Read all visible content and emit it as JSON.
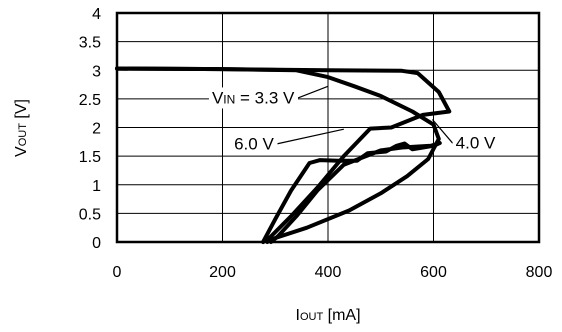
{
  "chart_data": {
    "type": "line",
    "xlabel": "I",
    "xlabel_sub": "OUT",
    "xlabel_unit": " [mA]",
    "ylabel": "V",
    "ylabel_sub": "OUT",
    "ylabel_unit": " [V]",
    "xlim": [
      0,
      800
    ],
    "ylim": [
      0,
      4
    ],
    "x_ticks": [
      0,
      200,
      400,
      600,
      800
    ],
    "y_ticks": [
      0,
      0.5,
      1,
      1.5,
      2,
      2.5,
      3,
      3.5,
      4
    ],
    "x_tick_labels": [
      "0",
      "200",
      "400",
      "600",
      "800"
    ],
    "y_tick_labels": [
      "0",
      "0.5",
      "1",
      "1.5",
      "2",
      "2.5",
      "3",
      "3.5",
      "4"
    ],
    "grid": true,
    "series": [
      {
        "label": "V",
        "label_sub": "IN",
        "label_rest": " = 3.3 V",
        "points": [
          [
            0,
            3.03
          ],
          [
            200,
            3.02
          ],
          [
            340,
            3.0
          ],
          [
            400,
            2.88
          ],
          [
            450,
            2.72
          ],
          [
            500,
            2.55
          ],
          [
            560,
            2.28
          ],
          [
            600,
            2.05
          ],
          [
            610,
            1.8
          ],
          [
            590,
            1.45
          ],
          [
            550,
            1.15
          ],
          [
            500,
            0.85
          ],
          [
            440,
            0.55
          ],
          [
            360,
            0.25
          ],
          [
            300,
            0.07
          ],
          [
            285,
            0
          ]
        ]
      },
      {
        "label": "4.0 V",
        "points": [
          [
            0,
            3.03
          ],
          [
            200,
            3.02
          ],
          [
            400,
            3.0
          ],
          [
            540,
            2.99
          ],
          [
            570,
            2.95
          ],
          [
            610,
            2.62
          ],
          [
            630,
            2.28
          ],
          [
            580,
            2.22
          ],
          [
            520,
            2.0
          ],
          [
            480,
            1.98
          ],
          [
            430,
            1.5
          ],
          [
            380,
            0.95
          ],
          [
            330,
            0.45
          ],
          [
            290,
            0.08
          ],
          [
            277,
            0
          ]
        ]
      },
      {
        "label": "6.0 V",
        "points": [
          [
            277,
            0
          ],
          [
            300,
            0.4
          ],
          [
            330,
            0.9
          ],
          [
            365,
            1.38
          ],
          [
            385,
            1.43
          ],
          [
            420,
            1.42
          ],
          [
            455,
            1.42
          ],
          [
            475,
            1.55
          ],
          [
            510,
            1.58
          ],
          [
            530,
            1.68
          ],
          [
            545,
            1.72
          ],
          [
            560,
            1.62
          ],
          [
            600,
            1.68
          ],
          [
            612,
            1.73
          ],
          [
            595,
            1.68
          ],
          [
            540,
            1.65
          ],
          [
            500,
            1.6
          ],
          [
            430,
            1.35
          ],
          [
            380,
            0.9
          ],
          [
            340,
            0.45
          ],
          [
            305,
            0.1
          ],
          [
            292,
            0
          ]
        ]
      }
    ],
    "annotations": [
      {
        "series": 0,
        "text_x": 180,
        "text_y": 2.42,
        "target_x": 400,
        "target_y": 2.72
      },
      {
        "series": 1,
        "text_x": 642,
        "text_y": 1.63,
        "target_x": 598,
        "target_y": 2.14
      },
      {
        "series": 2,
        "text_x": 222,
        "text_y": 1.62,
        "target_x": 430,
        "target_y": 1.97
      }
    ]
  }
}
